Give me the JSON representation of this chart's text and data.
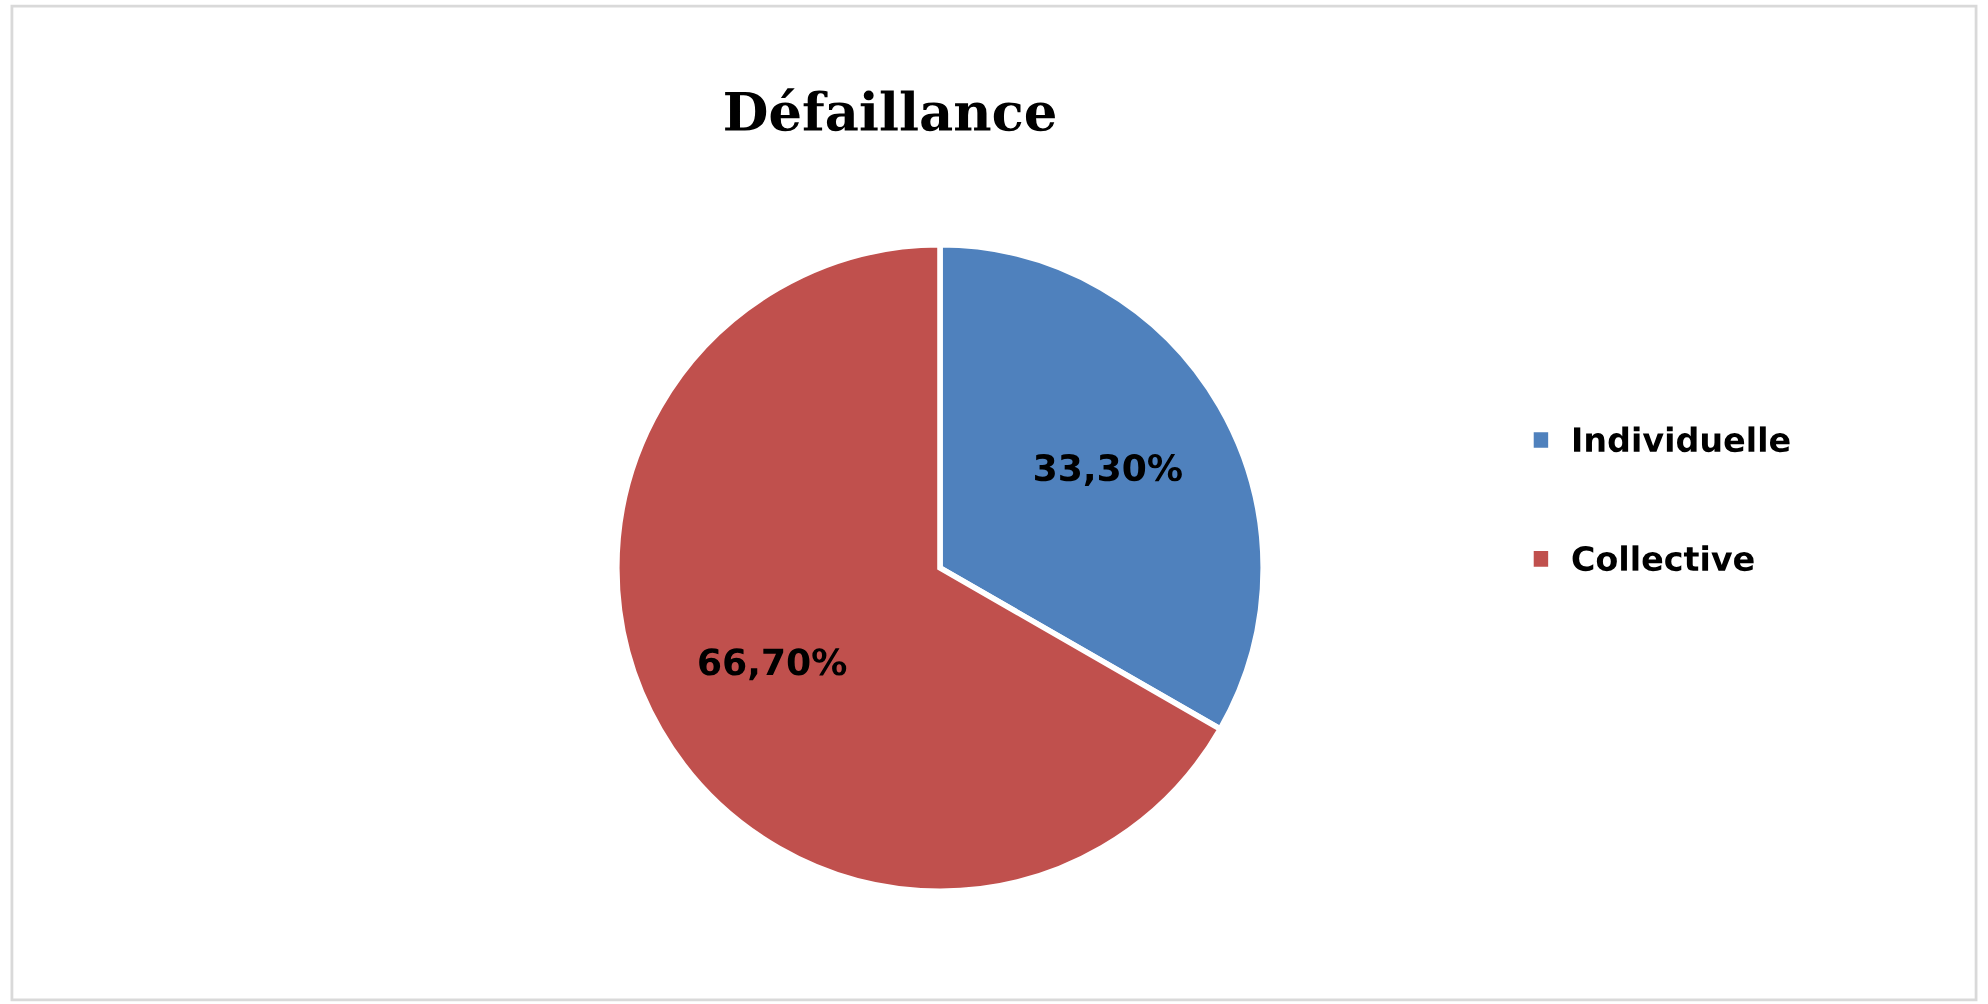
{
  "chart_data": {
    "type": "pie",
    "title": "Défaillance",
    "categories": [
      "Individuelle",
      "Collective"
    ],
    "values": [
      33.3,
      66.7
    ],
    "colors": [
      "#4f81bd",
      "#c0504d"
    ],
    "value_labels": [
      "33,30%",
      "66,70%"
    ],
    "legend": "right"
  }
}
